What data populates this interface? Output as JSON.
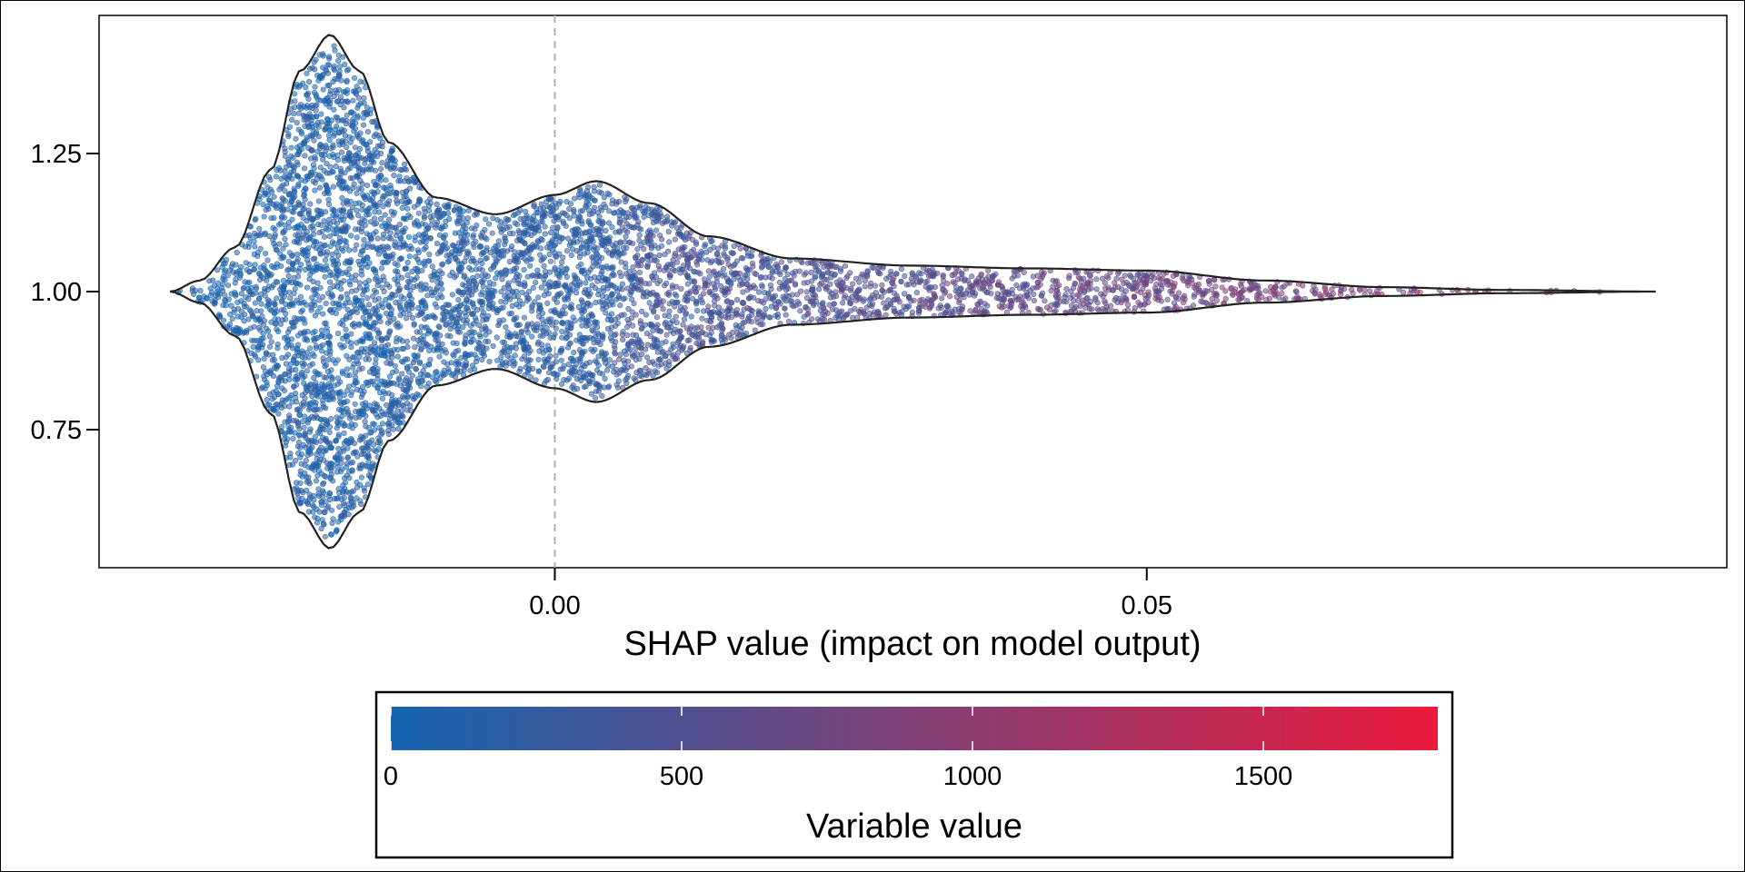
{
  "chart_data": {
    "type": "scatter",
    "subtype": "beeswarm-violin",
    "title": "",
    "xlabel": "SHAP value (impact on model output)",
    "ylabel": "",
    "xlim": [
      -0.0385,
      0.099
    ],
    "ylim": [
      0.5,
      1.5
    ],
    "x_ticks": [
      {
        "value": 0.0,
        "label": "0.00"
      },
      {
        "value": 0.05,
        "label": "0.05"
      }
    ],
    "y_ticks": [
      {
        "value": 0.75,
        "label": "0.75"
      },
      {
        "value": 1.0,
        "label": "1.00"
      },
      {
        "value": 1.25,
        "label": "1.25"
      }
    ],
    "reference_line": {
      "x": 0.0,
      "style": "dashed",
      "color": "#b3b3b3"
    },
    "grid": false,
    "violin": {
      "center": 1.0,
      "x_range": [
        -0.0325,
        0.093
      ],
      "half_width_profile": [
        {
          "x": -0.0325,
          "w": 0.0
        },
        {
          "x": -0.03,
          "w": 0.02
        },
        {
          "x": -0.027,
          "w": 0.08
        },
        {
          "x": -0.024,
          "w": 0.22
        },
        {
          "x": -0.0215,
          "w": 0.4
        },
        {
          "x": -0.019,
          "w": 0.465
        },
        {
          "x": -0.0165,
          "w": 0.4
        },
        {
          "x": -0.014,
          "w": 0.27
        },
        {
          "x": -0.01,
          "w": 0.17
        },
        {
          "x": -0.005,
          "w": 0.14
        },
        {
          "x": 0.0,
          "w": 0.175
        },
        {
          "x": 0.0035,
          "w": 0.2
        },
        {
          "x": 0.008,
          "w": 0.16
        },
        {
          "x": 0.013,
          "w": 0.1
        },
        {
          "x": 0.02,
          "w": 0.06
        },
        {
          "x": 0.03,
          "w": 0.047
        },
        {
          "x": 0.04,
          "w": 0.042
        },
        {
          "x": 0.05,
          "w": 0.038
        },
        {
          "x": 0.06,
          "w": 0.02
        },
        {
          "x": 0.07,
          "w": 0.008
        },
        {
          "x": 0.08,
          "w": 0.003
        },
        {
          "x": 0.093,
          "w": 0.0
        }
      ],
      "outline_color": "#222222",
      "approx_point_count": 6000
    },
    "colorbar": {
      "title": "Variable value",
      "min": 0,
      "max": 1800,
      "ticks": [
        {
          "value": 0,
          "label": "0"
        },
        {
          "value": 500,
          "label": "500"
        },
        {
          "value": 1000,
          "label": "1000"
        },
        {
          "value": 1500,
          "label": "1500"
        }
      ],
      "color_low": "#1565b0",
      "color_high": "#ec1a3c",
      "placement": "bottom"
    }
  }
}
